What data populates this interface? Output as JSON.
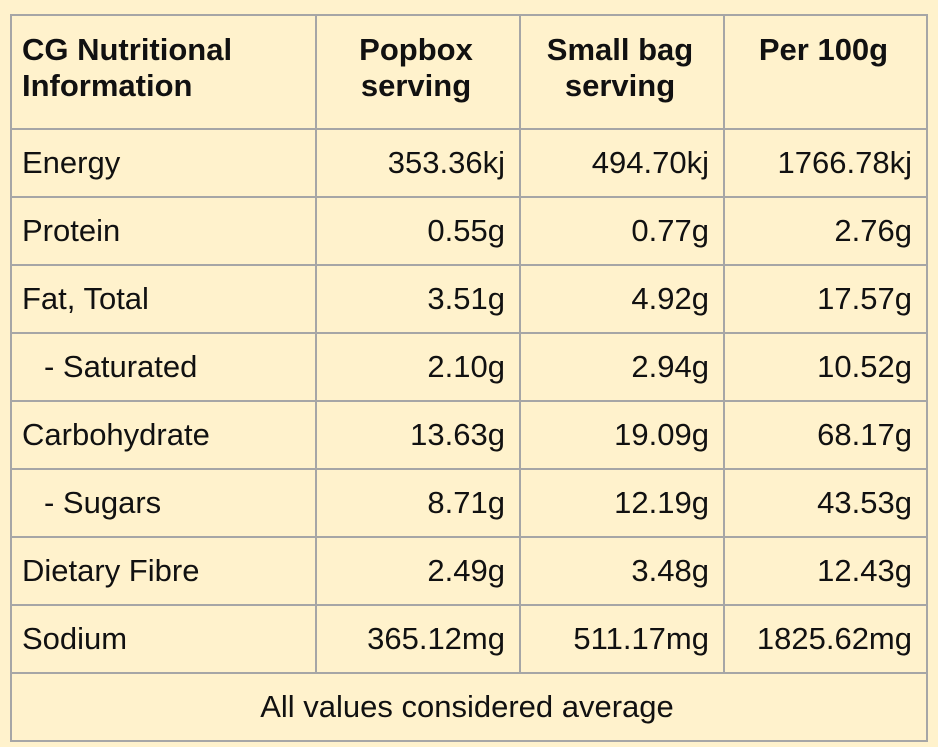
{
  "table": {
    "headers": {
      "label_line1": "CG Nutritional",
      "label_line2": "Information",
      "popbox_line1": "Popbox",
      "popbox_line2": "serving",
      "small_bag_line1": "Small bag",
      "small_bag_line2": "serving",
      "per100_line1": "Per 100g"
    },
    "rows": [
      {
        "label": "Energy",
        "popbox": "353.36kj",
        "small_bag": "494.70kj",
        "per_100g": "1766.78kj"
      },
      {
        "label": "Protein",
        "popbox": "0.55g",
        "small_bag": "0.77g",
        "per_100g": "2.76g"
      },
      {
        "label": "Fat, Total",
        "popbox": "3.51g",
        "small_bag": "4.92g",
        "per_100g": "17.57g"
      },
      {
        "label": "- Saturated",
        "popbox": "2.10g",
        "small_bag": "2.94g",
        "per_100g": "10.52g"
      },
      {
        "label": "Carbohydrate",
        "popbox": "13.63g",
        "small_bag": "19.09g",
        "per_100g": "68.17g"
      },
      {
        "label": "- Sugars",
        "popbox": "8.71g",
        "small_bag": "12.19g",
        "per_100g": "43.53g"
      },
      {
        "label": "Dietary Fibre",
        "popbox": "2.49g",
        "small_bag": "3.48g",
        "per_100g": "12.43g"
      },
      {
        "label": "Sodium",
        "popbox": "365.12mg",
        "small_bag": "511.17mg",
        "per_100g": "1825.62mg"
      }
    ],
    "footer": "All values considered average"
  },
  "colors": {
    "background": "#FFF2CC",
    "border": "#A6A6A6",
    "text": "#111111"
  }
}
